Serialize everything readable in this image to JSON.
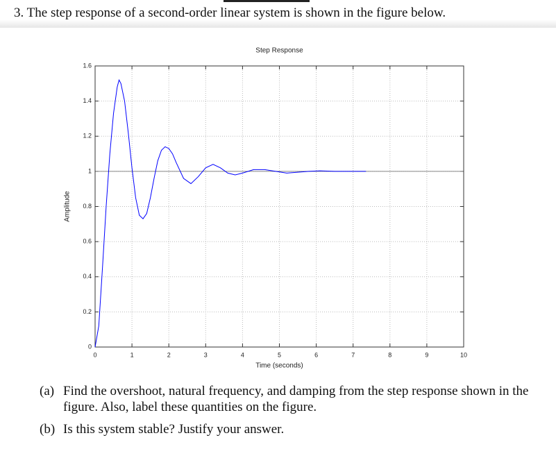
{
  "question": {
    "number": "3.",
    "text": "The step response of a second-order linear system is shown in the figure below.",
    "parts": [
      {
        "label": "(a)",
        "text": "Find the overshoot, natural frequency, and damping from the step response shown in the figure. Also, label these quantities on the figure."
      },
      {
        "label": "(b)",
        "text": "Is this system stable? Justify your answer."
      }
    ]
  },
  "chart_data": {
    "type": "line",
    "title": "Step Response",
    "x_label": "Time (seconds)",
    "y_label": "Amplitude",
    "xlim": [
      0,
      10
    ],
    "ylim": [
      0,
      1.6
    ],
    "xticks": [
      0,
      1,
      2,
      3,
      4,
      5,
      6,
      7,
      8,
      9,
      10
    ],
    "yticks": [
      0,
      0.2,
      0.4,
      0.6,
      0.8,
      1,
      1.2,
      1.4,
      1.6
    ],
    "grid": true,
    "hline": 1,
    "series": [
      {
        "color": "#0000ff",
        "x": [
          0,
          0.1,
          0.2,
          0.3,
          0.4,
          0.5,
          0.6,
          0.65,
          0.7,
          0.8,
          0.9,
          1.0,
          1.1,
          1.2,
          1.3,
          1.4,
          1.5,
          1.6,
          1.7,
          1.8,
          1.9,
          2.0,
          2.1,
          2.2,
          2.4,
          2.6,
          2.8,
          3.0,
          3.2,
          3.4,
          3.6,
          3.8,
          4.0,
          4.3,
          4.6,
          4.9,
          5.2,
          5.5,
          5.8,
          6.1,
          6.5,
          7.0,
          7.35
        ],
        "values": [
          0,
          0.12,
          0.45,
          0.8,
          1.1,
          1.33,
          1.48,
          1.52,
          1.5,
          1.4,
          1.22,
          1.02,
          0.85,
          0.75,
          0.73,
          0.76,
          0.85,
          0.96,
          1.06,
          1.12,
          1.14,
          1.13,
          1.1,
          1.05,
          0.96,
          0.93,
          0.97,
          1.02,
          1.04,
          1.02,
          0.99,
          0.98,
          0.99,
          1.01,
          1.01,
          1.0,
          0.99,
          0.995,
          1.0,
          1.003,
          1.0,
          1.0,
          1.0
        ]
      }
    ]
  }
}
